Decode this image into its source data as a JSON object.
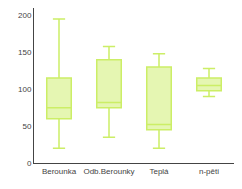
{
  "chart_data": {
    "type": "box",
    "categories": [
      "Berounka",
      "Odb.Berounky",
      "Teplá",
      "n-pěti"
    ],
    "whisker_low": [
      20,
      35,
      20,
      90
    ],
    "q1": [
      60,
      75,
      45,
      98
    ],
    "median": [
      75,
      82,
      52,
      105
    ],
    "q3": [
      115,
      140,
      130,
      115
    ],
    "whisker_high": [
      195,
      158,
      148,
      128
    ],
    "color": "#ccee66",
    "ylim": [
      0,
      210
    ],
    "yticks": [
      0,
      50,
      100,
      150,
      200
    ],
    "grid": false
  }
}
